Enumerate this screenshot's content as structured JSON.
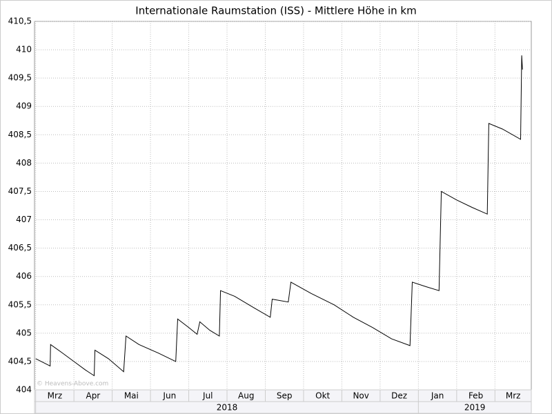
{
  "chart_data": {
    "type": "line",
    "title": "Internationale Raumstation (ISS) - Mittlere Höhe in km",
    "watermark": "© Heavens-Above.com",
    "x": [
      1.0,
      1.38,
      1.39,
      1.7,
      2.0,
      2.3,
      2.53,
      2.55,
      2.9,
      3.3,
      3.36,
      3.7,
      4.2,
      4.66,
      4.71,
      5.0,
      5.22,
      5.29,
      5.55,
      5.8,
      5.83,
      6.2,
      6.7,
      7.13,
      7.18,
      7.6,
      7.67,
      8.2,
      8.8,
      9.3,
      9.8,
      10.3,
      10.78,
      10.84,
      11.2,
      11.54,
      11.6,
      12.0,
      12.4,
      12.8,
      12.84,
      13.2,
      13.67,
      13.7,
      13.72
    ],
    "series": [
      {
        "name": "Mittlere Höhe",
        "color": "#000000",
        "values": [
          404.55,
          404.42,
          404.8,
          404.65,
          404.5,
          404.35,
          404.25,
          404.7,
          404.55,
          404.32,
          404.95,
          404.8,
          404.65,
          404.5,
          405.25,
          405.1,
          404.98,
          405.2,
          405.05,
          404.95,
          405.75,
          405.65,
          405.45,
          405.28,
          405.6,
          405.55,
          405.9,
          405.7,
          405.5,
          405.28,
          405.1,
          404.9,
          404.78,
          405.9,
          405.82,
          405.75,
          407.5,
          407.35,
          407.22,
          407.1,
          408.7,
          408.6,
          408.42,
          409.9,
          409.65
        ]
      }
    ],
    "xlim": [
      0.97,
      13.95
    ],
    "xticks": [
      {
        "value": 1,
        "label": "Mrz"
      },
      {
        "value": 2,
        "label": "Apr"
      },
      {
        "value": 3,
        "label": "Mai"
      },
      {
        "value": 4,
        "label": "Jun"
      },
      {
        "value": 5,
        "label": "Jul"
      },
      {
        "value": 6,
        "label": "Aug"
      },
      {
        "value": 7,
        "label": "Sep"
      },
      {
        "value": 8,
        "label": "Okt"
      },
      {
        "value": 9,
        "label": "Nov"
      },
      {
        "value": 10,
        "label": "Dez"
      },
      {
        "value": 11,
        "label": "Jan"
      },
      {
        "value": 12,
        "label": "Feb"
      },
      {
        "value": 13,
        "label": "Mrz"
      }
    ],
    "years": [
      {
        "label": "2018",
        "start": 1,
        "end": 11
      },
      {
        "label": "2019",
        "start": 11,
        "end": 13.95
      }
    ],
    "ylim": [
      404,
      410.5
    ],
    "yticks": [
      404,
      {
        "value": 404.5,
        "label": "404,5"
      },
      405,
      {
        "value": 405.5,
        "label": "405,5"
      },
      406,
      {
        "value": 406.5,
        "label": "406,5"
      },
      407,
      {
        "value": 407.5,
        "label": "407,5"
      },
      408,
      {
        "value": 408.5,
        "label": "408,5"
      },
      409,
      {
        "value": 409.5,
        "label": "409,5"
      },
      410,
      {
        "value": 410.5,
        "label": "410,5"
      }
    ],
    "grid": true
  }
}
